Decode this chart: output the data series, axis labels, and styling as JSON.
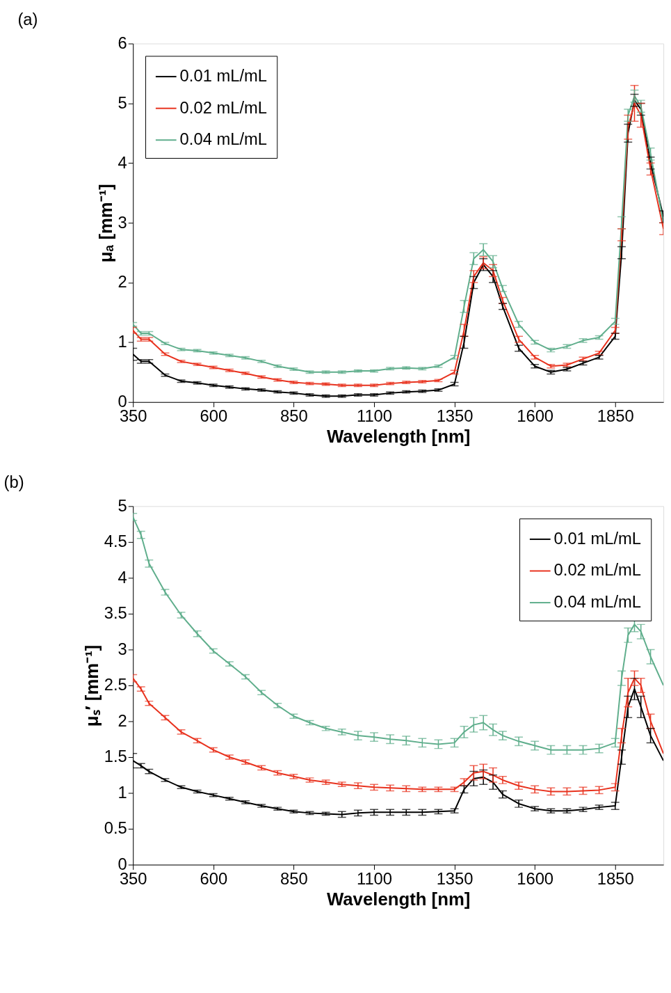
{
  "chart_data": [
    {
      "type": "line",
      "title": "(a)",
      "xlabel": "Wavelength [nm]",
      "ylabel": "μₐ [mm⁻¹]",
      "x": [
        350,
        375,
        400,
        450,
        500,
        550,
        600,
        650,
        700,
        750,
        800,
        850,
        900,
        950,
        1000,
        1050,
        1100,
        1150,
        1200,
        1250,
        1300,
        1350,
        1380,
        1410,
        1440,
        1470,
        1500,
        1550,
        1600,
        1650,
        1700,
        1750,
        1800,
        1850,
        1870,
        1890,
        1910,
        1930,
        1960,
        2000
      ],
      "series": [
        {
          "name": "0.01 mL/mL",
          "color": "#000000",
          "values": [
            0.8,
            0.68,
            0.68,
            0.45,
            0.35,
            0.32,
            0.28,
            0.25,
            0.22,
            0.2,
            0.17,
            0.15,
            0.12,
            0.1,
            0.1,
            0.12,
            0.12,
            0.15,
            0.17,
            0.18,
            0.2,
            0.3,
            1.0,
            2.0,
            2.3,
            2.1,
            1.6,
            0.9,
            0.6,
            0.5,
            0.55,
            0.65,
            0.75,
            1.1,
            2.5,
            4.5,
            5.05,
            4.9,
            4.0,
            3.1
          ],
          "errors": [
            0.1,
            0.03,
            0.03,
            0.02,
            0.02,
            0.02,
            0.02,
            0.02,
            0.02,
            0.02,
            0.02,
            0.02,
            0.02,
            0.02,
            0.02,
            0.02,
            0.02,
            0.02,
            0.02,
            0.02,
            0.02,
            0.03,
            0.1,
            0.1,
            0.1,
            0.1,
            0.05,
            0.05,
            0.03,
            0.03,
            0.03,
            0.03,
            0.03,
            0.05,
            0.1,
            0.15,
            0.1,
            0.1,
            0.1,
            0.1
          ]
        },
        {
          "name": "0.02 mL/mL",
          "color": "#e8321e",
          "values": [
            1.2,
            1.05,
            1.05,
            0.8,
            0.68,
            0.63,
            0.58,
            0.53,
            0.48,
            0.42,
            0.37,
            0.33,
            0.31,
            0.3,
            0.28,
            0.28,
            0.28,
            0.31,
            0.33,
            0.34,
            0.36,
            0.5,
            1.2,
            2.1,
            2.33,
            2.2,
            1.7,
            1.05,
            0.75,
            0.6,
            0.62,
            0.72,
            0.82,
            1.2,
            2.8,
            4.6,
            5.0,
            4.8,
            3.9,
            2.9
          ],
          "errors": [
            0.05,
            0.03,
            0.03,
            0.02,
            0.02,
            0.02,
            0.02,
            0.02,
            0.02,
            0.02,
            0.02,
            0.02,
            0.02,
            0.02,
            0.02,
            0.02,
            0.02,
            0.02,
            0.02,
            0.02,
            0.02,
            0.03,
            0.1,
            0.1,
            0.1,
            0.1,
            0.05,
            0.05,
            0.03,
            0.03,
            0.03,
            0.03,
            0.03,
            0.05,
            0.1,
            0.2,
            0.3,
            0.2,
            0.1,
            0.1
          ]
        },
        {
          "name": "0.04 mL/mL",
          "color": "#5fae8c",
          "values": [
            1.3,
            1.15,
            1.15,
            0.98,
            0.88,
            0.86,
            0.82,
            0.78,
            0.74,
            0.68,
            0.6,
            0.55,
            0.5,
            0.5,
            0.5,
            0.52,
            0.52,
            0.56,
            0.57,
            0.56,
            0.6,
            0.75,
            1.6,
            2.4,
            2.55,
            2.35,
            1.9,
            1.3,
            1.0,
            0.87,
            0.93,
            1.03,
            1.08,
            1.35,
            3.0,
            4.8,
            5.12,
            4.95,
            4.15,
            3.0
          ],
          "errors": [
            0.03,
            0.03,
            0.03,
            0.02,
            0.02,
            0.02,
            0.02,
            0.02,
            0.02,
            0.02,
            0.02,
            0.02,
            0.02,
            0.02,
            0.02,
            0.02,
            0.02,
            0.02,
            0.02,
            0.02,
            0.02,
            0.03,
            0.1,
            0.1,
            0.1,
            0.1,
            0.05,
            0.05,
            0.03,
            0.03,
            0.03,
            0.03,
            0.03,
            0.05,
            0.1,
            0.1,
            0.1,
            0.1,
            0.1,
            null
          ]
        }
      ],
      "xlim": [
        350,
        2000
      ],
      "xticks": [
        350,
        600,
        850,
        1100,
        1350,
        1600,
        1850
      ],
      "ylim": [
        0,
        6
      ],
      "yticks": [
        0,
        1,
        2,
        3,
        4,
        5,
        6
      ],
      "grid": false,
      "legend": "top left"
    },
    {
      "type": "line",
      "title": "(b)",
      "xlabel": "Wavelength [nm]",
      "ylabel": "μₛ′ [mm⁻¹]",
      "x": [
        350,
        375,
        400,
        450,
        500,
        550,
        600,
        650,
        700,
        750,
        800,
        850,
        900,
        950,
        1000,
        1050,
        1100,
        1150,
        1200,
        1250,
        1300,
        1350,
        1380,
        1410,
        1440,
        1470,
        1500,
        1550,
        1600,
        1650,
        1700,
        1750,
        1800,
        1850,
        1870,
        1890,
        1910,
        1930,
        1960,
        2000
      ],
      "series": [
        {
          "name": "0.01 mL/mL",
          "color": "#000000",
          "values": [
            1.45,
            1.38,
            1.3,
            1.18,
            1.08,
            1.02,
            0.97,
            0.92,
            0.87,
            0.82,
            0.78,
            0.74,
            0.72,
            0.71,
            0.7,
            0.72,
            0.73,
            0.73,
            0.73,
            0.73,
            0.74,
            0.75,
            1.05,
            1.2,
            1.22,
            1.15,
            0.98,
            0.85,
            0.78,
            0.75,
            0.75,
            0.77,
            0.8,
            0.82,
            1.5,
            2.2,
            2.45,
            2.2,
            1.8,
            1.45
          ],
          "errors": [
            0.1,
            0.03,
            0.03,
            0.02,
            0.02,
            0.02,
            0.02,
            0.02,
            0.02,
            0.02,
            0.02,
            0.02,
            0.02,
            0.02,
            0.04,
            0.04,
            0.04,
            0.04,
            0.04,
            0.04,
            0.03,
            0.03,
            0.05,
            0.1,
            0.1,
            0.1,
            0.05,
            0.05,
            0.03,
            0.03,
            0.03,
            0.03,
            0.03,
            0.05,
            0.1,
            0.15,
            0.15,
            0.15,
            0.1,
            null
          ]
        },
        {
          "name": "0.02 mL/mL",
          "color": "#e8321e",
          "values": [
            2.6,
            2.45,
            2.25,
            2.05,
            1.85,
            1.73,
            1.6,
            1.5,
            1.43,
            1.35,
            1.28,
            1.23,
            1.18,
            1.15,
            1.12,
            1.1,
            1.08,
            1.07,
            1.06,
            1.05,
            1.05,
            1.05,
            1.15,
            1.28,
            1.3,
            1.25,
            1.18,
            1.1,
            1.05,
            1.02,
            1.02,
            1.03,
            1.04,
            1.08,
            1.8,
            2.4,
            2.6,
            2.5,
            2.0,
            1.55
          ],
          "errors": [
            0.05,
            0.03,
            0.03,
            0.03,
            0.03,
            0.03,
            0.03,
            0.03,
            0.03,
            0.03,
            0.03,
            0.03,
            0.03,
            0.03,
            0.03,
            0.04,
            0.04,
            0.04,
            0.04,
            0.03,
            0.03,
            0.03,
            0.05,
            0.1,
            0.1,
            0.1,
            0.05,
            0.05,
            0.05,
            0.05,
            0.05,
            0.05,
            0.05,
            0.05,
            0.1,
            0.2,
            0.1,
            0.1,
            0.1,
            null
          ]
        },
        {
          "name": "0.04 mL/mL",
          "color": "#5fae8c",
          "values": [
            4.85,
            4.6,
            4.2,
            3.8,
            3.48,
            3.22,
            2.98,
            2.8,
            2.62,
            2.4,
            2.22,
            2.07,
            1.98,
            1.9,
            1.85,
            1.8,
            1.78,
            1.75,
            1.73,
            1.7,
            1.68,
            1.7,
            1.85,
            1.95,
            1.98,
            1.88,
            1.8,
            1.72,
            1.66,
            1.6,
            1.6,
            1.6,
            1.62,
            1.7,
            2.6,
            3.2,
            3.35,
            3.25,
            2.9,
            2.5
          ],
          "errors": [
            0.05,
            0.05,
            0.05,
            0.04,
            0.04,
            0.04,
            0.03,
            0.03,
            0.03,
            0.03,
            0.03,
            0.03,
            0.03,
            0.03,
            0.04,
            0.06,
            0.06,
            0.06,
            0.06,
            0.06,
            0.06,
            0.06,
            0.08,
            0.1,
            0.1,
            0.08,
            0.06,
            0.06,
            0.06,
            0.06,
            0.06,
            0.06,
            0.06,
            0.06,
            0.1,
            0.1,
            0.1,
            0.1,
            0.1,
            null
          ]
        }
      ],
      "xlim": [
        350,
        2000
      ],
      "xticks": [
        350,
        600,
        850,
        1100,
        1350,
        1600,
        1850
      ],
      "ylim": [
        0,
        5
      ],
      "yticks": [
        0,
        0.5,
        1,
        1.5,
        2,
        2.5,
        3,
        3.5,
        4,
        4.5,
        5
      ],
      "grid": false,
      "legend": "top right"
    }
  ]
}
